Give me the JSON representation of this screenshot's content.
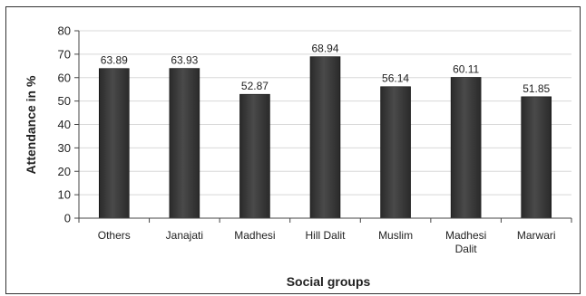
{
  "chart_data": {
    "type": "bar",
    "categories": [
      "Others",
      "Janajati",
      "Madhesi",
      "Hill Dalit",
      "Muslim",
      "Madhesi Dalit",
      "Marwari"
    ],
    "category_lines": [
      [
        "Others"
      ],
      [
        "Janajati"
      ],
      [
        "Madhesi"
      ],
      [
        "Hill Dalit"
      ],
      [
        "Muslim"
      ],
      [
        "Madhesi",
        "Dalit"
      ],
      [
        "Marwari"
      ]
    ],
    "values": [
      63.89,
      63.93,
      52.87,
      68.94,
      56.14,
      60.11,
      51.85
    ],
    "data_labels": [
      "63.89",
      "63.93",
      "52.87",
      "68.94",
      "56.14",
      "60.11",
      "51.85"
    ],
    "xlabel": "Social groups",
    "ylabel": "Attendance in %",
    "ylim": [
      0,
      80
    ],
    "yticks": [
      0,
      10,
      20,
      30,
      40,
      50,
      60,
      70,
      80
    ],
    "grid": true,
    "legend": "none",
    "colors": {
      "bar": "#2a2a2a",
      "bar_highlight": "#4a4a4a",
      "grid": "#d8d8d8",
      "axis": "#444444"
    }
  }
}
